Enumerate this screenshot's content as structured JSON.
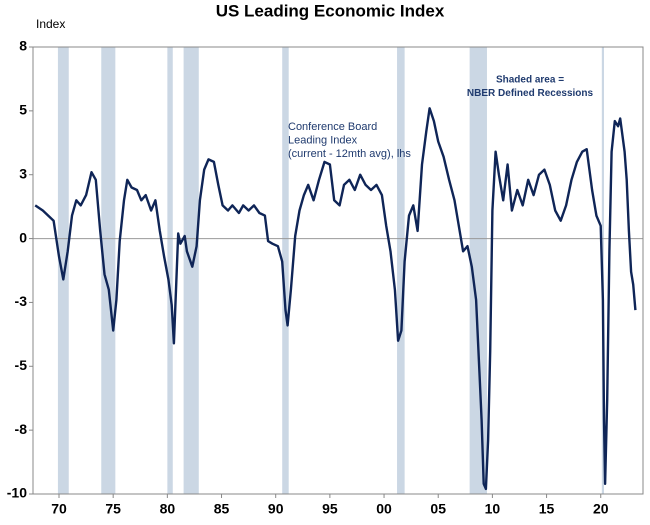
{
  "chart_data": {
    "type": "line",
    "title": "US Leading Economic Index",
    "y_label": "Index",
    "annotations": [
      {
        "lines": [
          "Conference Board",
          "Leading Index",
          "(current - 12mth avg), lhs"
        ]
      },
      {
        "lines": [
          "Shaded area =",
          "NBER Defined Recessions"
        ]
      }
    ],
    "color": "#0f2557",
    "recession_color": "#cbd7e4",
    "recessions": [
      [
        1969.9,
        1970.9
      ],
      [
        1973.9,
        1975.2
      ],
      [
        1980.0,
        1980.5
      ],
      [
        1981.5,
        1982.9
      ],
      [
        1990.6,
        1991.2
      ],
      [
        2001.2,
        2001.9
      ],
      [
        2007.9,
        2009.5
      ],
      [
        2020.1,
        2020.3
      ]
    ],
    "xlim": [
      1967.6,
      2023.9
    ],
    "ylim": [
      -10,
      7.5
    ],
    "xticks": [
      {
        "value": 1970,
        "label": "70"
      },
      {
        "value": 1975,
        "label": "75"
      },
      {
        "value": 1980,
        "label": "80"
      },
      {
        "value": 1985,
        "label": "85"
      },
      {
        "value": 1990,
        "label": "90"
      },
      {
        "value": 1995,
        "label": "95"
      },
      {
        "value": 2000,
        "label": "00"
      },
      {
        "value": 2005,
        "label": "05"
      },
      {
        "value": 2010,
        "label": "10"
      },
      {
        "value": 2015,
        "label": "15"
      },
      {
        "value": 2020,
        "label": "20"
      }
    ],
    "yticks": [
      {
        "value": 7.5,
        "label": "8"
      },
      5,
      {
        "value": 2.5,
        "label": "3"
      },
      0,
      {
        "value": -2.5,
        "label": "-3"
      },
      -5,
      {
        "value": -7.5,
        "label": "-8"
      },
      -10
    ],
    "x": [
      1967.8,
      1968.5,
      1969,
      1969.5,
      1970,
      1970.4,
      1970.8,
      1971.2,
      1971.6,
      1972,
      1972.5,
      1973,
      1973.4,
      1973.8,
      1974.2,
      1974.6,
      1975.0,
      1975.3,
      1975.6,
      1976,
      1976.3,
      1976.7,
      1977.2,
      1977.6,
      1978,
      1978.5,
      1978.9,
      1979.3,
      1979.7,
      1980.1,
      1980.4,
      1980.6,
      1981.0,
      1981.2,
      1981.6,
      1981.8,
      1982.3,
      1982.7,
      1983,
      1983.4,
      1983.8,
      1984.3,
      1984.7,
      1985.1,
      1985.6,
      1986,
      1986.6,
      1987,
      1987.5,
      1988,
      1988.5,
      1989,
      1989.3,
      1989.7,
      1990.2,
      1990.6,
      1990.9,
      1991.1,
      1991.4,
      1991.8,
      1992.2,
      1992.6,
      1993,
      1993.5,
      1994,
      1994.5,
      1995,
      1995.4,
      1995.9,
      1996.3,
      1996.8,
      1997.3,
      1997.8,
      1998.3,
      1998.8,
      1999.3,
      1999.8,
      2000.2,
      2000.6,
      2001.0,
      2001.3,
      2001.6,
      2001.9,
      2002.3,
      2002.7,
      2003.1,
      2003.5,
      2003.9,
      2004.2,
      2004.6,
      2005,
      2005.5,
      2006,
      2006.5,
      2006.9,
      2007.3,
      2007.7,
      2008.1,
      2008.5,
      2008.8,
      2009.0,
      2009.2,
      2009.4,
      2009.6,
      2009.8,
      2010.0,
      2010.3,
      2010.6,
      2011,
      2011.4,
      2011.8,
      2012.3,
      2012.8,
      2013.3,
      2013.8,
      2014.3,
      2014.8,
      2015.3,
      2015.8,
      2016.3,
      2016.8,
      2017.3,
      2017.8,
      2018.3,
      2018.7,
      2019.2,
      2019.6,
      2020.0,
      2020.2,
      2020.3,
      2020.4,
      2020.6,
      2020.8,
      2021.0,
      2021.3,
      2021.6,
      2021.8,
      2022.2,
      2022.4,
      2022.6,
      2022.8,
      2023.0,
      2023.2
    ],
    "values": [
      1.3,
      1.1,
      0.9,
      0.7,
      -0.7,
      -1.6,
      -0.5,
      0.9,
      1.5,
      1.3,
      1.7,
      2.6,
      2.3,
      0.3,
      -1.4,
      -2.0,
      -3.6,
      -2.4,
      -0.1,
      1.5,
      2.3,
      2.0,
      1.9,
      1.5,
      1.7,
      1.1,
      1.5,
      0.3,
      -0.7,
      -1.6,
      -2.6,
      -4.1,
      0.2,
      -0.2,
      0.1,
      -0.5,
      -1.1,
      -0.3,
      1.5,
      2.7,
      3.1,
      3.0,
      2.1,
      1.3,
      1.1,
      1.3,
      1.0,
      1.3,
      1.1,
      1.3,
      1.0,
      0.9,
      -0.1,
      -0.2,
      -0.3,
      -0.9,
      -2.8,
      -3.4,
      -2.0,
      0.1,
      1.1,
      1.7,
      2.1,
      1.5,
      2.3,
      3.0,
      2.9,
      1.5,
      1.3,
      2.1,
      2.3,
      1.9,
      2.5,
      2.1,
      1.9,
      2.1,
      1.7,
      0.5,
      -0.5,
      -2.0,
      -4.0,
      -3.6,
      -0.9,
      0.9,
      1.3,
      0.3,
      2.9,
      4.2,
      5.1,
      4.6,
      3.8,
      3.2,
      2.3,
      1.5,
      0.5,
      -0.5,
      -0.3,
      -1.1,
      -2.4,
      -5.2,
      -7.1,
      -9.6,
      -9.8,
      -7.9,
      -4.4,
      1.1,
      3.4,
      2.5,
      1.5,
      2.9,
      1.1,
      1.9,
      1.3,
      2.3,
      1.7,
      2.5,
      2.7,
      2.1,
      1.1,
      0.7,
      1.3,
      2.3,
      3.0,
      3.4,
      3.5,
      1.9,
      0.9,
      0.5,
      -2.4,
      -7.1,
      -9.6,
      -6.3,
      -0.5,
      3.4,
      4.6,
      4.4,
      4.7,
      3.4,
      2.3,
      0.3,
      -1.3,
      -1.8,
      -2.8
    ]
  }
}
